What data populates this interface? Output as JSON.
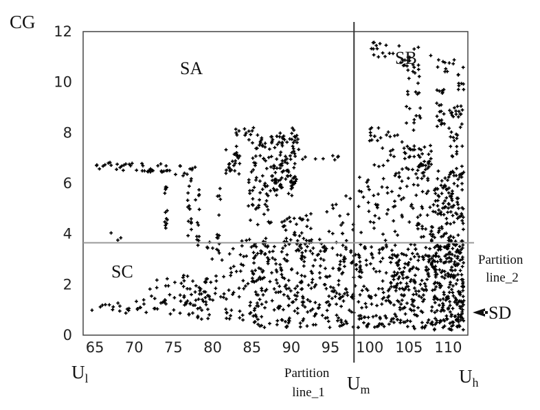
{
  "chart_data": {
    "type": "scatter",
    "ylabel": "CG",
    "xlim": [
      63.5,
      112.5
    ],
    "ylim": [
      0,
      12
    ],
    "xticks": [
      65,
      70,
      75,
      80,
      85,
      90,
      95,
      100,
      105,
      110
    ],
    "yticks": [
      0,
      2,
      4,
      6,
      8,
      10,
      12
    ],
    "x_markers": {
      "low": "U",
      "low_sub": "l",
      "mid": "U",
      "mid_sub": "m",
      "high": "U",
      "high_sub": "h"
    },
    "partition_line_1": {
      "x": 98,
      "label_line1": "Partition",
      "label_line2": "line_1"
    },
    "partition_line_2": {
      "y": 3.65,
      "label_line1": "Partition",
      "label_line2": "line_2"
    },
    "regions": {
      "sa": "SA",
      "sb": "SB",
      "sc": "SC",
      "sd": "SD"
    },
    "series": [
      {
        "marker": "plus",
        "color": "#000000",
        "clusters": [
          {
            "x": [
              65,
              68
            ],
            "y": [
              6.55,
              6.85
            ],
            "n": 10
          },
          {
            "x": [
              68,
              74
            ],
            "y": [
              6.45,
              6.8
            ],
            "n": 26
          },
          {
            "x": [
              74,
              78
            ],
            "y": [
              6.3,
              6.7
            ],
            "n": 12
          },
          {
            "x": [
              73.8,
              74.3
            ],
            "y": [
              4.0,
              6.7
            ],
            "n": 14
          },
          {
            "x": [
              76.8,
              77.3
            ],
            "y": [
              3.8,
              6.6
            ],
            "n": 16
          },
          {
            "x": [
              77.8,
              78.4
            ],
            "y": [
              3.5,
              6.0
            ],
            "n": 12
          },
          {
            "x": [
              80.5,
              81
            ],
            "y": [
              3.2,
              5.8
            ],
            "n": 10
          },
          {
            "x": [
              81.5,
              83.5
            ],
            "y": [
              6.3,
              7.5
            ],
            "n": 24
          },
          {
            "x": [
              82.5,
              85.5
            ],
            "y": [
              7.8,
              8.2
            ],
            "n": 10
          },
          {
            "x": [
              84.5,
              87.5
            ],
            "y": [
              4.2,
              8.0
            ],
            "n": 70
          },
          {
            "x": [
              87.5,
              90.5
            ],
            "y": [
              5.5,
              8.0
            ],
            "n": 90
          },
          {
            "x": [
              89.8,
              91
            ],
            "y": [
              5.8,
              8.3
            ],
            "n": 22
          },
          {
            "x": [
              90.5,
              96
            ],
            "y": [
              6.9,
              7.1
            ],
            "n": 8
          },
          {
            "x": [
              94,
              98
            ],
            "y": [
              4.0,
              5.7
            ],
            "n": 16
          },
          {
            "x": [
              88.5,
              93
            ],
            "y": [
              3.3,
              4.8
            ],
            "n": 45
          },
          {
            "x": [
              66.5,
              68.5
            ],
            "y": [
              3.6,
              4.3
            ],
            "n": 3
          },
          {
            "x": [
              64.5,
              78
            ],
            "y": [
              0.8,
              1.4
            ],
            "n": 45
          },
          {
            "x": [
              72,
              80
            ],
            "y": [
              1.3,
              2.4
            ],
            "n": 40
          },
          {
            "x": [
              78,
              86
            ],
            "y": [
              0.6,
              2.0
            ],
            "n": 55
          },
          {
            "x": [
              79,
              87
            ],
            "y": [
              2.0,
              3.9
            ],
            "n": 45
          },
          {
            "x": [
              85,
              92
            ],
            "y": [
              0.3,
              3.8
            ],
            "n": 160
          },
          {
            "x": [
              92,
              98
            ],
            "y": [
              0.3,
              3.8
            ],
            "n": 130
          },
          {
            "x": [
              98,
              103
            ],
            "y": [
              0.3,
              3.6
            ],
            "n": 110
          },
          {
            "x": [
              103,
              108
            ],
            "y": [
              0.2,
              3.6
            ],
            "n": 170
          },
          {
            "x": [
              108,
              112
            ],
            "y": [
              0.2,
              3.6
            ],
            "n": 240
          },
          {
            "x": [
              98.5,
              104
            ],
            "y": [
              3.7,
              6.5
            ],
            "n": 45
          },
          {
            "x": [
              104,
              108
            ],
            "y": [
              3.7,
              7.5
            ],
            "n": 70
          },
          {
            "x": [
              108,
              112
            ],
            "y": [
              3.7,
              6.5
            ],
            "n": 110
          },
          {
            "x": [
              100,
              102.5
            ],
            "y": [
              6.5,
              8.3
            ],
            "n": 18
          },
          {
            "x": [
              102.5,
              106
            ],
            "y": [
              7.0,
              8.0
            ],
            "n": 12
          },
          {
            "x": [
              106,
              108
            ],
            "y": [
              6.5,
              7.5
            ],
            "n": 10
          },
          {
            "x": [
              104.5,
              106.5
            ],
            "y": [
              8.0,
              11.0
            ],
            "n": 28
          },
          {
            "x": [
              100,
              103.5
            ],
            "y": [
              10.9,
              11.6
            ],
            "n": 14
          },
          {
            "x": [
              103.5,
              108
            ],
            "y": [
              10.5,
              11.5
            ],
            "n": 12
          },
          {
            "x": [
              108,
              112
            ],
            "y": [
              10.4,
              10.9
            ],
            "n": 10
          },
          {
            "x": [
              108.5,
              109.5
            ],
            "y": [
              8.0,
              9.9
            ],
            "n": 20
          },
          {
            "x": [
              110,
              111.5
            ],
            "y": [
              7.0,
              9.0
            ],
            "n": 20
          },
          {
            "x": [
              111,
              112
            ],
            "y": [
              4.5,
              10.8
            ],
            "n": 35
          },
          {
            "x": [
              106.5,
              107.5
            ],
            "y": [
              6.0,
              7.5
            ],
            "n": 8
          }
        ]
      }
    ]
  }
}
